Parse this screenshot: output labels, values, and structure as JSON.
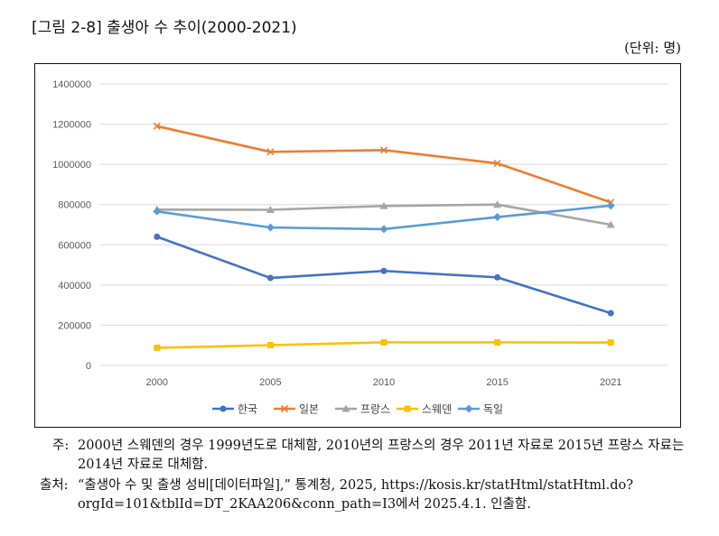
{
  "figure": {
    "title": "[그림 2-8] 출생아 수 추이(2000-2021)",
    "unit": "(단위: 명)"
  },
  "chart_data": {
    "type": "line",
    "categories": [
      "2000",
      "2005",
      "2010",
      "2015",
      "2021"
    ],
    "ylim": [
      0,
      1400000
    ],
    "yticks": [
      "0",
      "200000",
      "400000",
      "600000",
      "800000",
      "1000000",
      "1200000",
      "1400000"
    ],
    "grid": true,
    "legend_position": "bottom",
    "series": [
      {
        "name": "한국",
        "color": "#4472C4",
        "marker": "circle",
        "values": [
          640000,
          435000,
          470000,
          438000,
          260000
        ]
      },
      {
        "name": "일본",
        "color": "#ED7D31",
        "marker": "x",
        "values": [
          1190000,
          1062000,
          1071000,
          1005000,
          811000
        ]
      },
      {
        "name": "프랑스",
        "color": "#A5A5A5",
        "marker": "triangle",
        "values": [
          775000,
          774000,
          793000,
          800000,
          700000
        ]
      },
      {
        "name": "스웨덴",
        "color": "#FFC000",
        "marker": "square",
        "values": [
          88000,
          101000,
          115000,
          115000,
          114000
        ]
      },
      {
        "name": "독일",
        "color": "#5B9BD5",
        "marker": "diamond",
        "values": [
          766000,
          686000,
          678000,
          738000,
          795000
        ]
      }
    ]
  },
  "notes": {
    "note_label": "주:",
    "note_text": "2000년 스웨덴의 경우 1999년도로 대체함, 2010년의 프랑스의 경우 2011년 자료로 2015년 프랑스 자료는 2014년 자료로 대체함.",
    "source_label": "출처:",
    "source_text": "“출생아 수 및 출생 성비[데이터파일],” 통계청, 2025, https://kosis.kr/statHtml/statHtml.do?orgId=101&tblId=DT_2KAA206&conn_path=I3에서 2025.4.1. 인출함."
  }
}
